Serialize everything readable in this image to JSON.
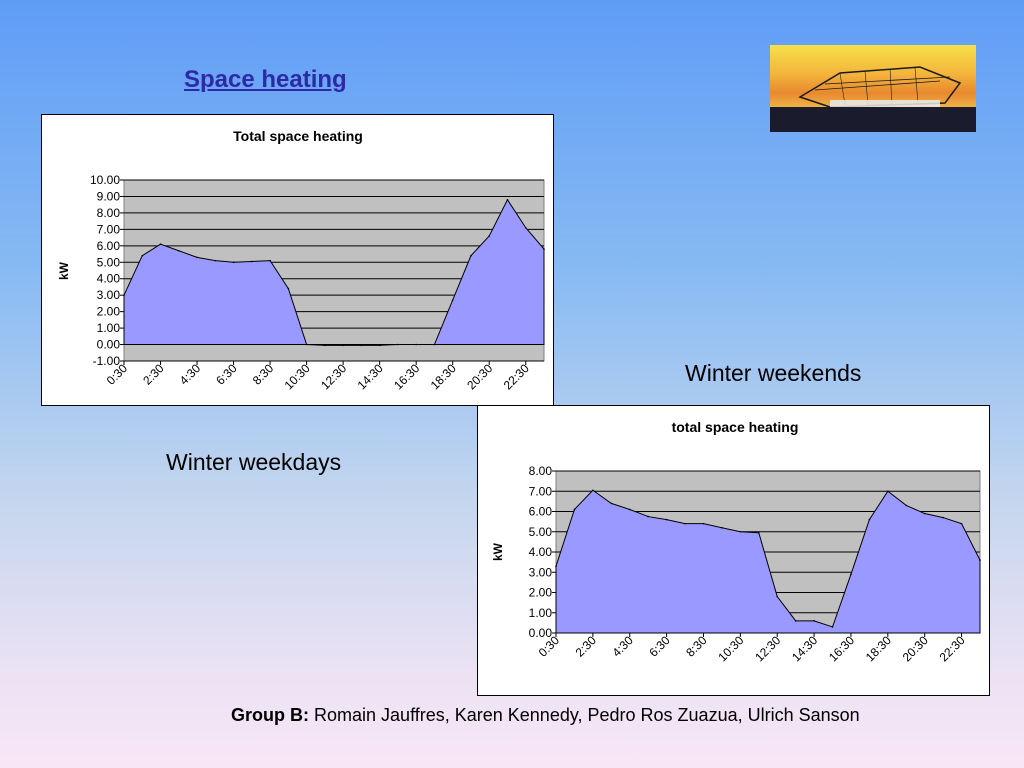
{
  "slide": {
    "title": "Space heating",
    "caption_weekdays": "Winter weekdays",
    "caption_weekends": "Winter weekends",
    "credits_label": "Group B:",
    "credits_names": "Romain Jauffres, Karen Kennedy, Pedro Ros Zuazua, Ulrich Sanson"
  },
  "logo": {
    "icon": "building-photo-logo",
    "colors": [
      "#f6e04a",
      "#e8892e",
      "#1a1c2e"
    ]
  },
  "colors": {
    "fill": "#9999ff",
    "plot_bg": "#c0c0c0",
    "grid": "#000000",
    "title_color": "#2e2aa6"
  },
  "chart_data": [
    {
      "type": "area",
      "title": "Total space heating",
      "xlabel": "",
      "ylabel": "kW",
      "ylim": [
        -1,
        10
      ],
      "yticks": [
        "10.00",
        "9.00",
        "8.00",
        "7.00",
        "6.00",
        "5.00",
        "4.00",
        "3.00",
        "2.00",
        "1.00",
        "0.00",
        "-1.00"
      ],
      "grid": true,
      "legend": "none",
      "x": [
        "0:30",
        "1:30",
        "2:30",
        "3:30",
        "4:30",
        "5:30",
        "6:30",
        "7:30",
        "8:30",
        "9:30",
        "10:30",
        "11:30",
        "12:30",
        "13:30",
        "14:30",
        "15:30",
        "16:30",
        "17:30",
        "18:30",
        "19:30",
        "20:30",
        "21:30",
        "22:30",
        "23:30"
      ],
      "xtick_labels": [
        "0:30",
        "2:30",
        "4:30",
        "6:30",
        "8:30",
        "10:30",
        "12:30",
        "14:30",
        "16:30",
        "18:30",
        "20:30",
        "22:30"
      ],
      "values": [
        3.0,
        5.4,
        6.1,
        5.7,
        5.3,
        5.1,
        5.0,
        5.05,
        5.1,
        3.4,
        0.0,
        -0.05,
        -0.05,
        -0.05,
        -0.05,
        0.0,
        0.0,
        0.0,
        2.7,
        5.4,
        6.6,
        8.8,
        7.1,
        5.8
      ]
    },
    {
      "type": "area",
      "title": "total space heating",
      "xlabel": "",
      "ylabel": "kW",
      "ylim": [
        0,
        8
      ],
      "yticks": [
        "8.00",
        "7.00",
        "6.00",
        "5.00",
        "4.00",
        "3.00",
        "2.00",
        "1.00",
        "0.00"
      ],
      "grid": true,
      "legend": "none",
      "x": [
        "0:30",
        "1:30",
        "2:30",
        "3:30",
        "4:30",
        "5:30",
        "6:30",
        "7:30",
        "8:30",
        "9:30",
        "10:30",
        "11:30",
        "12:30",
        "13:30",
        "14:30",
        "15:30",
        "16:30",
        "17:30",
        "18:30",
        "19:30",
        "20:30",
        "21:30",
        "22:30",
        "23:30"
      ],
      "xtick_labels": [
        "0:30",
        "2:30",
        "4:30",
        "6:30",
        "8:30",
        "10:30",
        "12:30",
        "14:30",
        "16:30",
        "18:30",
        "20:30",
        "22:30"
      ],
      "values": [
        3.3,
        6.1,
        7.05,
        6.4,
        6.1,
        5.75,
        5.6,
        5.4,
        5.4,
        5.2,
        5.0,
        4.95,
        1.8,
        0.6,
        0.6,
        0.3,
        2.9,
        5.6,
        7.0,
        6.3,
        5.9,
        5.7,
        5.4,
        3.6
      ]
    }
  ]
}
